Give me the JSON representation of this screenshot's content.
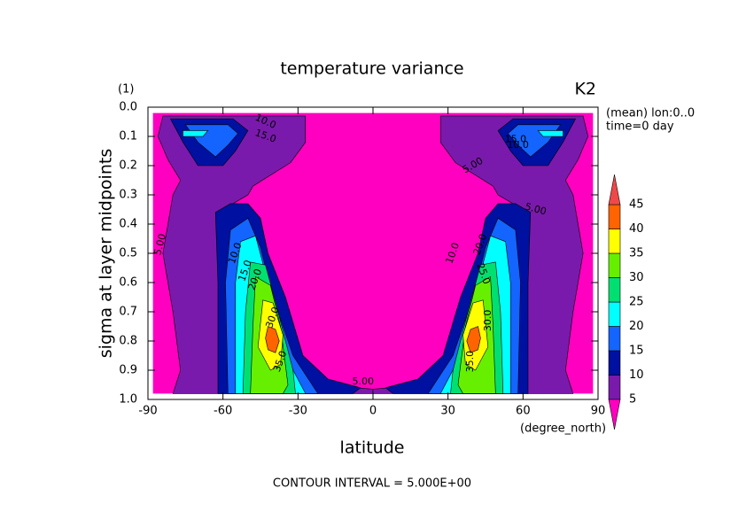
{
  "chart_data": {
    "type": "contour",
    "title": "temperature variance",
    "units": "(1)",
    "label_right": "K2",
    "info": [
      "(mean) lon:0..0",
      "time=0 day"
    ],
    "xlabel": "latitude",
    "xunits": "(degree_north)",
    "ylabel": "sigma at layer midpoints",
    "footer": "CONTOUR INTERVAL = 5.000E+00",
    "xlim": [
      -90,
      90
    ],
    "xticks": [
      -90,
      -60,
      -30,
      0,
      30,
      60,
      90
    ],
    "ylim": [
      1.0,
      0.0
    ],
    "yticks": [
      {
        "value": 0.0,
        "label": "0.0"
      },
      0.1,
      0.2,
      0.3,
      0.4,
      0.5,
      0.6,
      0.7,
      0.8,
      0.9,
      {
        "value": 1.0,
        "label": "1.0"
      }
    ],
    "colorbar": {
      "levels": [
        5,
        10,
        15,
        20,
        25,
        30,
        35,
        40,
        45
      ],
      "colors": [
        "#ff00c0",
        "#7a1aac",
        "#0010a0",
        "#1464ff",
        "#00ffff",
        "#00e070",
        "#66f000",
        "#ffff00",
        "#ff6400",
        "#f04848"
      ]
    },
    "contour_labels": [
      {
        "value": 5,
        "label": "5.00"
      },
      {
        "value": 5,
        "label": "5.00"
      },
      {
        "value": 5,
        "label": "5.00"
      },
      {
        "value": 5,
        "label": "5.00"
      },
      {
        "value": 10,
        "label": "10.0"
      },
      {
        "value": 15,
        "label": "15.0"
      },
      {
        "value": 20,
        "label": "20.0"
      },
      {
        "value": 30,
        "label": "30.0"
      },
      {
        "value": 35,
        "label": "35.0"
      },
      {
        "value": 10,
        "label": "10.0"
      },
      {
        "value": 20,
        "label": "20.0"
      },
      {
        "value": 25,
        "label": "25.0"
      },
      {
        "value": 30,
        "label": "30.0"
      },
      {
        "value": 35,
        "label": "35.0"
      },
      {
        "value": 10,
        "label": "10.0"
      },
      {
        "value": 15,
        "label": "15.0"
      },
      {
        "value": 15,
        "label": "15.0"
      },
      {
        "value": 10,
        "label": "10.0"
      }
    ]
  }
}
